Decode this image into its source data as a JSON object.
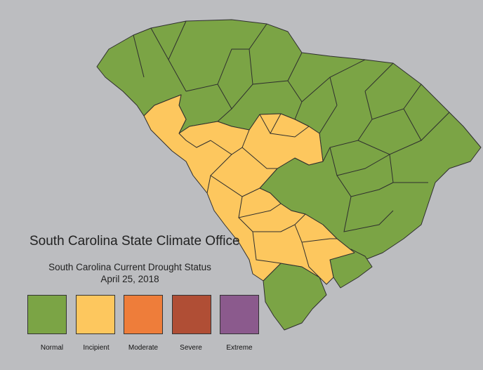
{
  "title": "South Carolina State Climate Office",
  "subtitle": "South Carolina Current Drought Status",
  "date": "April 25, 2018",
  "colors": {
    "background": "#bcbdc0",
    "normal": "#7ba445",
    "incipient": "#fdc75e",
    "moderate": "#ee7d3a",
    "severe": "#b04e35",
    "extreme": "#8b5a8d",
    "border": "#2e2e2e"
  },
  "legend": [
    {
      "label": "Normal",
      "status": "normal"
    },
    {
      "label": "Incipient",
      "status": "incipient"
    },
    {
      "label": "Moderate",
      "status": "moderate"
    },
    {
      "label": "Severe",
      "status": "severe"
    },
    {
      "label": "Extreme",
      "status": "extreme"
    }
  ],
  "region_status": {
    "upstate-and-northeast": "normal",
    "midlands-to-lowcountry-band": "incipient",
    "central-and-coastal": "normal",
    "southern-tip": "normal"
  }
}
